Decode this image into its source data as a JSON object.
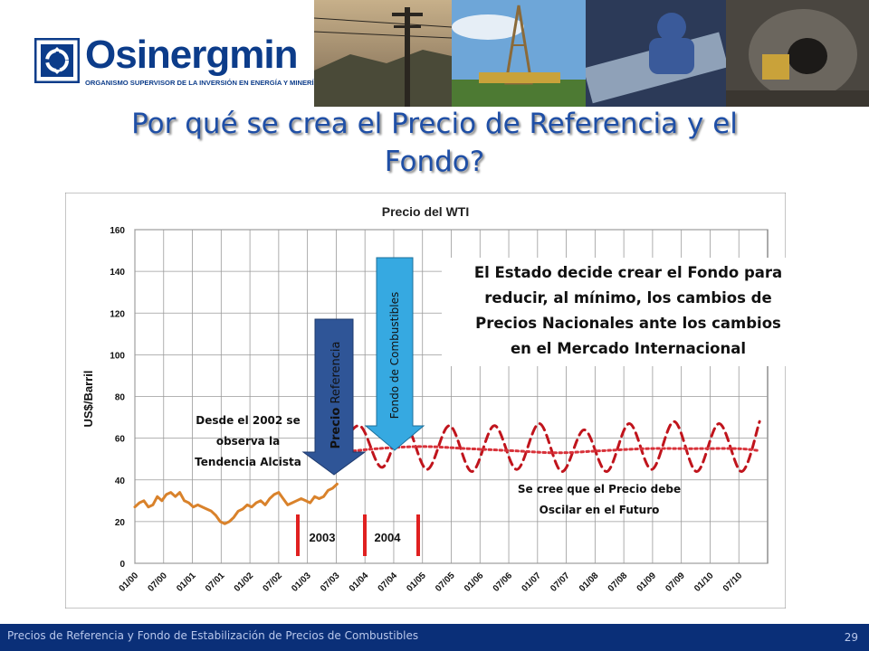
{
  "header": {
    "logo_name": "Osinergmin",
    "logo_tagline": "ORGANISMO SUPERVISOR DE LA INVERSIÓN EN ENERGÍA Y MINERÍA",
    "logo_icon": "osinergmin-logo-icon",
    "photos": [
      "power-lines-photo",
      "oil-rig-photo",
      "pipeline-worker-photo",
      "mine-tunnel-photo"
    ]
  },
  "slide": {
    "title_line1": "Por qué se crea el Precio de Referencia y el",
    "title_line2": "Fondo?",
    "title_color": "#1f4fa6"
  },
  "chart_data": {
    "type": "line",
    "title": "Precio del WTI",
    "ylabel": "US$/Barril",
    "ylim": [
      0,
      160
    ],
    "yticks": [
      0,
      20,
      40,
      60,
      80,
      100,
      120,
      140,
      160
    ],
    "xticks": [
      "01/00",
      "07/00",
      "01/01",
      "07/01",
      "01/02",
      "07/02",
      "01/03",
      "07/03",
      "01/04",
      "07/04",
      "01/05",
      "07/05",
      "01/06",
      "07/06",
      "01/07",
      "07/07",
      "01/08",
      "07/08",
      "01/09",
      "07/09",
      "01/10",
      "07/10"
    ],
    "grid": true,
    "series": [
      {
        "style": "solid",
        "color": "#d9822b",
        "x": [
          0,
          0.5,
          1,
          1.5,
          2,
          2.5,
          3,
          3.5,
          4,
          4.5,
          5,
          5.5,
          6,
          6.5,
          7,
          7.5,
          8,
          8.5,
          9,
          9.5,
          10,
          10.5,
          11,
          11.5,
          12,
          12.5,
          13,
          13.5,
          14,
          14.5,
          15,
          15.5,
          16,
          16.5,
          17,
          17.5,
          18,
          18.5,
          19,
          19.5,
          20,
          20.5,
          21,
          21.5,
          22,
          22.5
        ],
        "y": [
          27,
          29,
          30,
          27,
          28,
          32,
          30,
          33,
          34,
          32,
          34,
          30,
          29,
          27,
          28,
          27,
          26,
          25,
          23,
          20,
          19,
          20,
          22,
          25,
          26,
          28,
          27,
          29,
          30,
          28,
          31,
          33,
          34,
          31,
          28,
          29,
          30,
          31,
          30,
          29,
          32,
          31,
          32,
          35,
          36,
          38
        ]
      },
      {
        "style": "dashed",
        "color": "#c0141c",
        "x": [
          22.5,
          25,
          27.5,
          30,
          32.5,
          35,
          37.5,
          40,
          42.5,
          45,
          47.5,
          50,
          52.5,
          55,
          57.5,
          60,
          62.5,
          65,
          67.5,
          69.5
        ],
        "y": [
          52,
          66,
          46,
          67,
          45,
          66,
          44,
          66,
          45,
          67,
          44,
          64,
          44,
          67,
          45,
          68,
          44,
          67,
          44,
          68
        ]
      },
      {
        "style": "dotted",
        "color": "#d8323a",
        "x": [
          22.5,
          27,
          32,
          37,
          42,
          47,
          52,
          57,
          62,
          67,
          69.5
        ],
        "y": [
          53,
          55,
          56,
          55,
          54,
          53,
          54,
          55,
          55,
          55,
          54
        ]
      }
    ],
    "annotations": {
      "alcista_line1": "Desde el 2002 se",
      "alcista_line2": "observa la",
      "alcista_line3": "Tendencia Alcista",
      "precio_bold": "Precio",
      "precio_rest": " Referencia",
      "fondo": "Fondo de Combustibles",
      "estado_line1": "El Estado decide crear el Fondo para",
      "estado_line2": "reducir, al mínimo, los cambios de",
      "estado_line3": "Precios Nacionales ante los cambios",
      "estado_line4": "en el Mercado Internacional",
      "oscilar_line1": "Se cree que el Precio debe",
      "oscilar_line2": "Oscilar en el Futuro",
      "year_2003": "2003",
      "year_2004": "2004"
    },
    "colors": {
      "arrow_precio": "#2f5597",
      "arrow_fondo": "#36a9e1",
      "markers": "#e02020"
    }
  },
  "footer": {
    "text": "Precios de Referencia y Fondo de Estabilización de Precios de Combustibles",
    "page": "29"
  }
}
